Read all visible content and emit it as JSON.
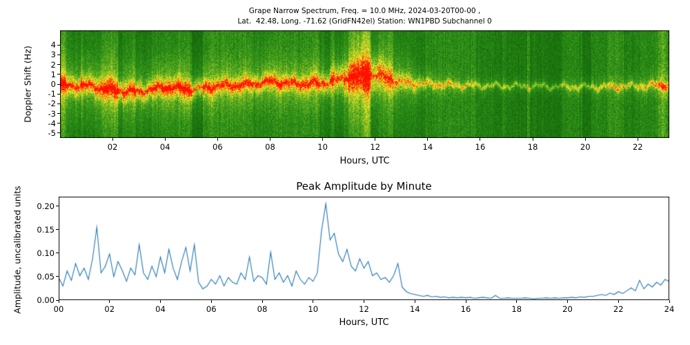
{
  "figure": {
    "background": "#ffffff"
  },
  "chart_data": [
    {
      "type": "heatmap",
      "title_line1": "Grape Narrow Spectrum, Freq. = 10.0 MHz, 2024-03-20T00-00 ,",
      "title_line2": "Lat.  42.48, Long. -71.62 (GridFN42el) Station: WN1PBD Subchannel 0",
      "xlabel": "Hours, UTC",
      "ylabel": "Doppler Shift (Hz)",
      "xlim": [
        0,
        23.2
      ],
      "ylim": [
        -5.5,
        5.5
      ],
      "xticks": [
        2,
        4,
        6,
        8,
        10,
        12,
        14,
        16,
        18,
        20,
        22
      ],
      "xtick_labels": [
        "02",
        "04",
        "06",
        "08",
        "10",
        "12",
        "14",
        "16",
        "18",
        "20",
        "22"
      ],
      "yticks": [
        4,
        3,
        2,
        1,
        0,
        -1,
        -2,
        -3,
        -4,
        -5
      ],
      "ytick_labels": [
        "4",
        "3",
        "2",
        "1",
        "0",
        "-1",
        "-2",
        "-3",
        "-4",
        "-5"
      ],
      "band": {
        "hours": [
          0,
          1,
          2,
          3,
          4,
          5,
          6,
          7,
          8,
          9,
          10,
          11,
          12,
          13,
          14,
          15,
          16,
          17,
          18,
          19,
          20,
          21,
          22,
          23,
          24
        ],
        "center_hz": [
          -0.2,
          -0.15,
          -0.6,
          -0.8,
          -0.3,
          -0.55,
          -0.2,
          -0.1,
          0.25,
          0.0,
          0.1,
          0.7,
          1.0,
          0.2,
          0.0,
          -0.1,
          -0.15,
          -0.2,
          -0.2,
          -0.25,
          -0.3,
          -0.25,
          -0.2,
          -0.1,
          0.0
        ],
        "spread_hz": [
          1.1,
          1.2,
          1.3,
          1.2,
          1.1,
          1.2,
          0.9,
          0.9,
          1.0,
          0.9,
          1.1,
          1.8,
          2.2,
          1.2,
          0.5,
          0.35,
          0.3,
          0.28,
          0.28,
          0.28,
          0.3,
          0.32,
          0.38,
          0.45,
          0.5
        ],
        "intensity": [
          0.75,
          0.8,
          0.85,
          0.8,
          0.8,
          0.85,
          0.62,
          0.68,
          0.72,
          0.66,
          0.78,
          0.95,
          0.9,
          0.62,
          0.55,
          0.5,
          0.48,
          0.46,
          0.45,
          0.45,
          0.48,
          0.5,
          0.52,
          0.6,
          0.55
        ],
        "core_intensity": [
          0.9,
          0.85,
          0.95,
          0.9,
          0.85,
          0.9,
          0.4,
          0.55,
          0.65,
          0.5,
          0.7,
          0.95,
          0.85,
          0.3,
          0.05,
          0,
          0,
          0,
          0,
          0,
          0,
          0,
          0,
          0.15,
          0
        ]
      },
      "streaks": [
        {
          "t": 0.07,
          "w": 0.12,
          "boost": 0.5
        },
        {
          "t": 10.38,
          "w": 0.05,
          "boost": 0.35
        },
        {
          "t": 11.7,
          "w": 0.06,
          "boost": 0.3
        },
        {
          "t": 16.9,
          "w": 0.04,
          "boost": 0.22
        },
        {
          "t": 22.95,
          "w": 0.12,
          "boost": 0.45
        },
        {
          "t": 23.35,
          "w": 0.07,
          "boost": 0.3
        }
      ],
      "colormap": [
        [
          0.0,
          0,
          68,
          0
        ],
        [
          0.22,
          24,
          110,
          12
        ],
        [
          0.38,
          48,
          148,
          26
        ],
        [
          0.52,
          122,
          186,
          36
        ],
        [
          0.63,
          198,
          214,
          36
        ],
        [
          0.73,
          255,
          235,
          45
        ],
        [
          0.83,
          255,
          165,
          20
        ],
        [
          0.91,
          255,
          80,
          10
        ],
        [
          1.0,
          255,
          16,
          0
        ]
      ]
    },
    {
      "type": "line",
      "title": "Peak Amplitude by Minute",
      "xlabel": "Hours, UTC",
      "ylabel": "Amplitude, uncalibrated units",
      "xlim": [
        0,
        24
      ],
      "ylim": [
        0,
        0.22
      ],
      "xticks": [
        0,
        2,
        4,
        6,
        8,
        10,
        12,
        14,
        16,
        18,
        20,
        22,
        24
      ],
      "xtick_labels": [
        "00",
        "02",
        "04",
        "06",
        "08",
        "10",
        "12",
        "14",
        "16",
        "18",
        "20",
        "22",
        "24"
      ],
      "yticks": [
        0.0,
        0.05,
        0.1,
        0.15,
        0.2
      ],
      "ytick_labels": [
        "0.00",
        "0.05",
        "0.10",
        "0.15",
        "0.20"
      ],
      "line_color": "#1f77b4",
      "x_start_hour": 0,
      "x_end_hour": 24,
      "sample_minutes": 10,
      "values": [
        0.048,
        0.03,
        0.062,
        0.042,
        0.078,
        0.052,
        0.068,
        0.044,
        0.088,
        0.155,
        0.058,
        0.072,
        0.098,
        0.05,
        0.082,
        0.063,
        0.04,
        0.068,
        0.054,
        0.118,
        0.058,
        0.044,
        0.072,
        0.05,
        0.092,
        0.058,
        0.108,
        0.068,
        0.044,
        0.082,
        0.112,
        0.062,
        0.118,
        0.038,
        0.024,
        0.03,
        0.044,
        0.034,
        0.052,
        0.03,
        0.048,
        0.038,
        0.034,
        0.058,
        0.044,
        0.092,
        0.04,
        0.052,
        0.048,
        0.034,
        0.102,
        0.044,
        0.058,
        0.038,
        0.052,
        0.03,
        0.062,
        0.044,
        0.034,
        0.048,
        0.04,
        0.058,
        0.148,
        0.205,
        0.128,
        0.142,
        0.098,
        0.082,
        0.108,
        0.072,
        0.062,
        0.088,
        0.068,
        0.082,
        0.052,
        0.058,
        0.044,
        0.048,
        0.038,
        0.052,
        0.078,
        0.028,
        0.018,
        0.014,
        0.012,
        0.01,
        0.008,
        0.01,
        0.007,
        0.008,
        0.006,
        0.007,
        0.005,
        0.006,
        0.005,
        0.006,
        0.005,
        0.006,
        0.004,
        0.005,
        0.006,
        0.005,
        0.004,
        0.01,
        0.004,
        0.004,
        0.005,
        0.004,
        0.004,
        0.004,
        0.005,
        0.004,
        0.003,
        0.004,
        0.004,
        0.005,
        0.004,
        0.005,
        0.004,
        0.005,
        0.005,
        0.006,
        0.005,
        0.007,
        0.006,
        0.008,
        0.008,
        0.01,
        0.012,
        0.01,
        0.015,
        0.012,
        0.018,
        0.014,
        0.02,
        0.026,
        0.02,
        0.042,
        0.024,
        0.034,
        0.028,
        0.038,
        0.032,
        0.044,
        0.04
      ]
    }
  ]
}
